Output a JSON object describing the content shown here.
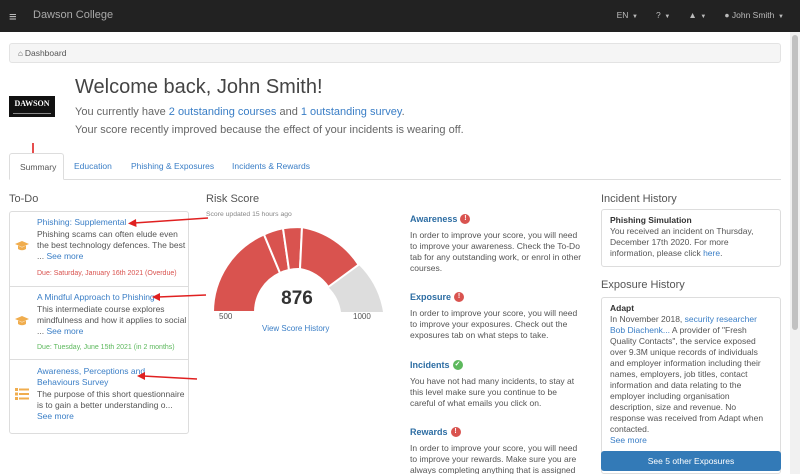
{
  "topbar": {
    "menu_icon": "≡",
    "brand": "Dawson College",
    "language": "EN",
    "help": "?",
    "bell": "🔔",
    "user": "John Smith"
  },
  "breadcrumb": {
    "label": "Dashboard"
  },
  "logo": {
    "text": "DAWSON"
  },
  "welcome": {
    "title": "Welcome back, John Smith!",
    "line1_prefix": "You currently have ",
    "line1_courses": "2 outstanding courses",
    "line1_mid": " and ",
    "line1_survey": "1 outstanding survey",
    "line1_suffix": ".",
    "line2": "Your score recently improved because the effect of your incidents is wearing off."
  },
  "tabs": [
    {
      "label": "Summary"
    },
    {
      "label": "Education"
    },
    {
      "label": "Phishing & Exposures"
    },
    {
      "label": "Incidents & Rewards"
    }
  ],
  "todo": {
    "title": "To-Do",
    "items": [
      {
        "title": "Phishing: Supplemental",
        "desc": "Phishing scams can often elude even the best technology defences. The best ...",
        "see_more": "See more",
        "due": "Due: Saturday, January 16th 2021 (Overdue)",
        "icon": "graduation-cap-icon"
      },
      {
        "title": "A Mindful Approach to Phishing",
        "desc": "This intermediate course explores mindfulness and how it applies to social ...",
        "see_more": "See more",
        "due": "Due: Tuesday, June 15th 2021 (in 2 months)",
        "icon": "graduation-cap-icon"
      },
      {
        "title": "Awareness, Perceptions and Behaviours Survey",
        "desc": "The purpose of this short questionnaire is to gain a better understanding o...",
        "see_more": "See more",
        "icon": "list-icon"
      }
    ]
  },
  "risk": {
    "title": "Risk Score",
    "updated": "Score updated 15 hours ago",
    "score": "876",
    "min": "500",
    "max": "1000",
    "view_history": "View Score History",
    "colors": {
      "filled": "#d9534f",
      "empty": "#dddddd"
    }
  },
  "categories": [
    {
      "title": "Awareness",
      "status": "!",
      "text": "In order to improve your score, you will need to improve your awareness. Check the To-Do tab for any outstanding work, or enrol in other courses."
    },
    {
      "title": "Exposure",
      "status": "!",
      "text": "In order to improve your score, you will need to improve your exposures. Check out the exposures tab on what steps to take."
    },
    {
      "title": "Incidents",
      "status": "✓",
      "text": "You have not had many incidents, to stay at this level make sure you continue to be careful of what emails you click on."
    },
    {
      "title": "Rewards",
      "status": "!",
      "text": "In order to improve your score, you will need to improve your rewards. Make sure you are always completing anything that is assigned"
    }
  ],
  "incident_history": {
    "title": "Incident History",
    "head": "Phishing Simulation",
    "body": "You received an incident on Thursday, December 17th 2020. For more information, please click ",
    "link": "here",
    "end": "."
  },
  "exposure_history": {
    "title": "Exposure History",
    "head": "Adapt",
    "body_prefix": "In November 2018, ",
    "link": "security researcher Bob Diachenk...",
    "body": " A provider of \"Fresh Quality Contacts\", the service exposed over 9.3M unique records of individuals and employer information including their names, employers, job titles, contact information and data relating to the employer including organisation description, size and revenue. No response was received from Adapt when contacted.",
    "see_more": "See more",
    "button": "See 5 other Exposures"
  }
}
